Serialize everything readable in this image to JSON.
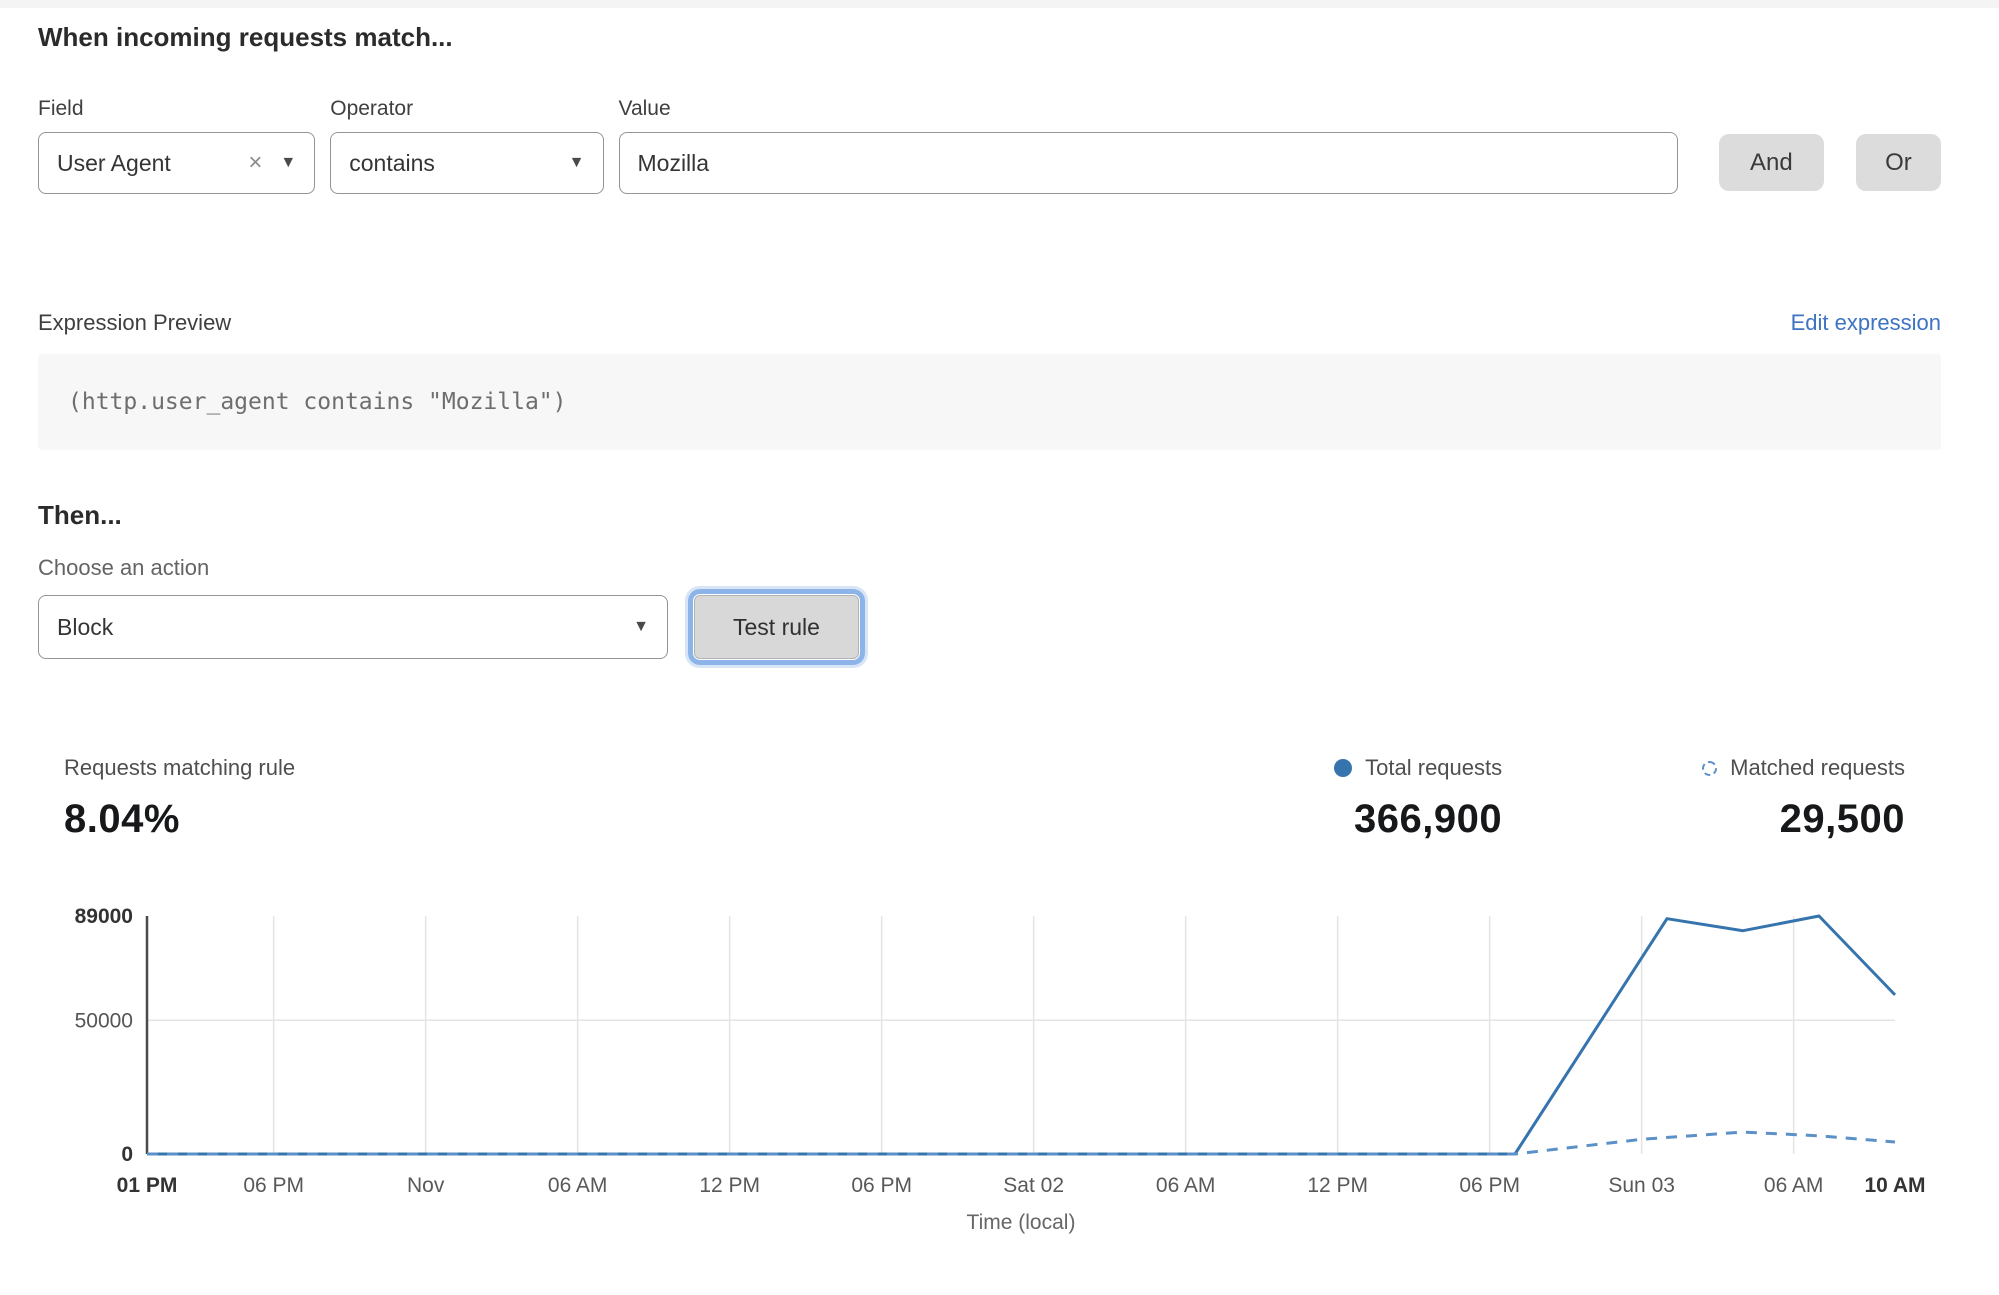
{
  "header": {
    "title": "When incoming requests match..."
  },
  "rule_builder": {
    "field": {
      "label": "Field",
      "value": "User Agent"
    },
    "operator": {
      "label": "Operator",
      "value": "contains"
    },
    "value": {
      "label": "Value",
      "value": "Mozilla"
    },
    "and_label": "And",
    "or_label": "Or"
  },
  "expression": {
    "label": "Expression Preview",
    "edit_link": "Edit expression",
    "code": "(http.user_agent contains \"Mozilla\")"
  },
  "then_section": {
    "title": "Then...",
    "action_label": "Choose an action",
    "action_value": "Block",
    "test_button": "Test rule"
  },
  "stats": {
    "matching": {
      "label": "Requests matching rule",
      "value": "8.04%"
    },
    "total": {
      "label": "Total requests",
      "value": "366,900"
    },
    "matched": {
      "label": "Matched requests",
      "value": "29,500"
    }
  },
  "colors": {
    "link": "#3e74c2",
    "focus_ring": "#8db4e8",
    "total_series": "#3674ae",
    "matched_series": "#5b91c8",
    "grid": "#e4e4e4",
    "axis": "#4a4a4a"
  },
  "chart_data": {
    "type": "line",
    "title": "",
    "xlabel": "Time (local)",
    "ylabel": "",
    "grid": true,
    "legend_position": "top-right-above-chart",
    "x_unit": "hours-from-start",
    "x_range": [
      0,
      69
    ],
    "ylim": [
      0,
      89000
    ],
    "yticks": [
      {
        "value": 0,
        "label": "0",
        "bold": true
      },
      {
        "value": 50000,
        "label": "50000",
        "bold": false
      },
      {
        "value": 89000,
        "label": "89000",
        "bold": true
      }
    ],
    "xticks": [
      {
        "t": 0,
        "label": "01 PM",
        "bold": true
      },
      {
        "t": 5,
        "label": "06 PM",
        "bold": false
      },
      {
        "t": 11,
        "label": "Nov",
        "bold": false
      },
      {
        "t": 17,
        "label": "06 AM",
        "bold": false
      },
      {
        "t": 23,
        "label": "12 PM",
        "bold": false
      },
      {
        "t": 29,
        "label": "06 PM",
        "bold": false
      },
      {
        "t": 35,
        "label": "Sat 02",
        "bold": false
      },
      {
        "t": 41,
        "label": "06 AM",
        "bold": false
      },
      {
        "t": 47,
        "label": "12 PM",
        "bold": false
      },
      {
        "t": 53,
        "label": "06 PM",
        "bold": false
      },
      {
        "t": 59,
        "label": "Sun 03",
        "bold": false
      },
      {
        "t": 65,
        "label": "06 AM",
        "bold": false
      },
      {
        "t": 69,
        "label": "10 AM",
        "bold": true
      }
    ],
    "series": [
      {
        "name": "Total requests",
        "style": "solid",
        "color": "#3674ae",
        "points": [
          [
            0,
            0
          ],
          [
            54,
            0
          ],
          [
            60,
            88000
          ],
          [
            63,
            83500
          ],
          [
            66,
            89000
          ],
          [
            69,
            59500
          ]
        ]
      },
      {
        "name": "Matched requests",
        "style": "dashed",
        "color": "#5b91c8",
        "points": [
          [
            0,
            0
          ],
          [
            54,
            0
          ],
          [
            59,
            5500
          ],
          [
            63,
            8200
          ],
          [
            66,
            6800
          ],
          [
            69,
            4500
          ]
        ]
      }
    ]
  }
}
